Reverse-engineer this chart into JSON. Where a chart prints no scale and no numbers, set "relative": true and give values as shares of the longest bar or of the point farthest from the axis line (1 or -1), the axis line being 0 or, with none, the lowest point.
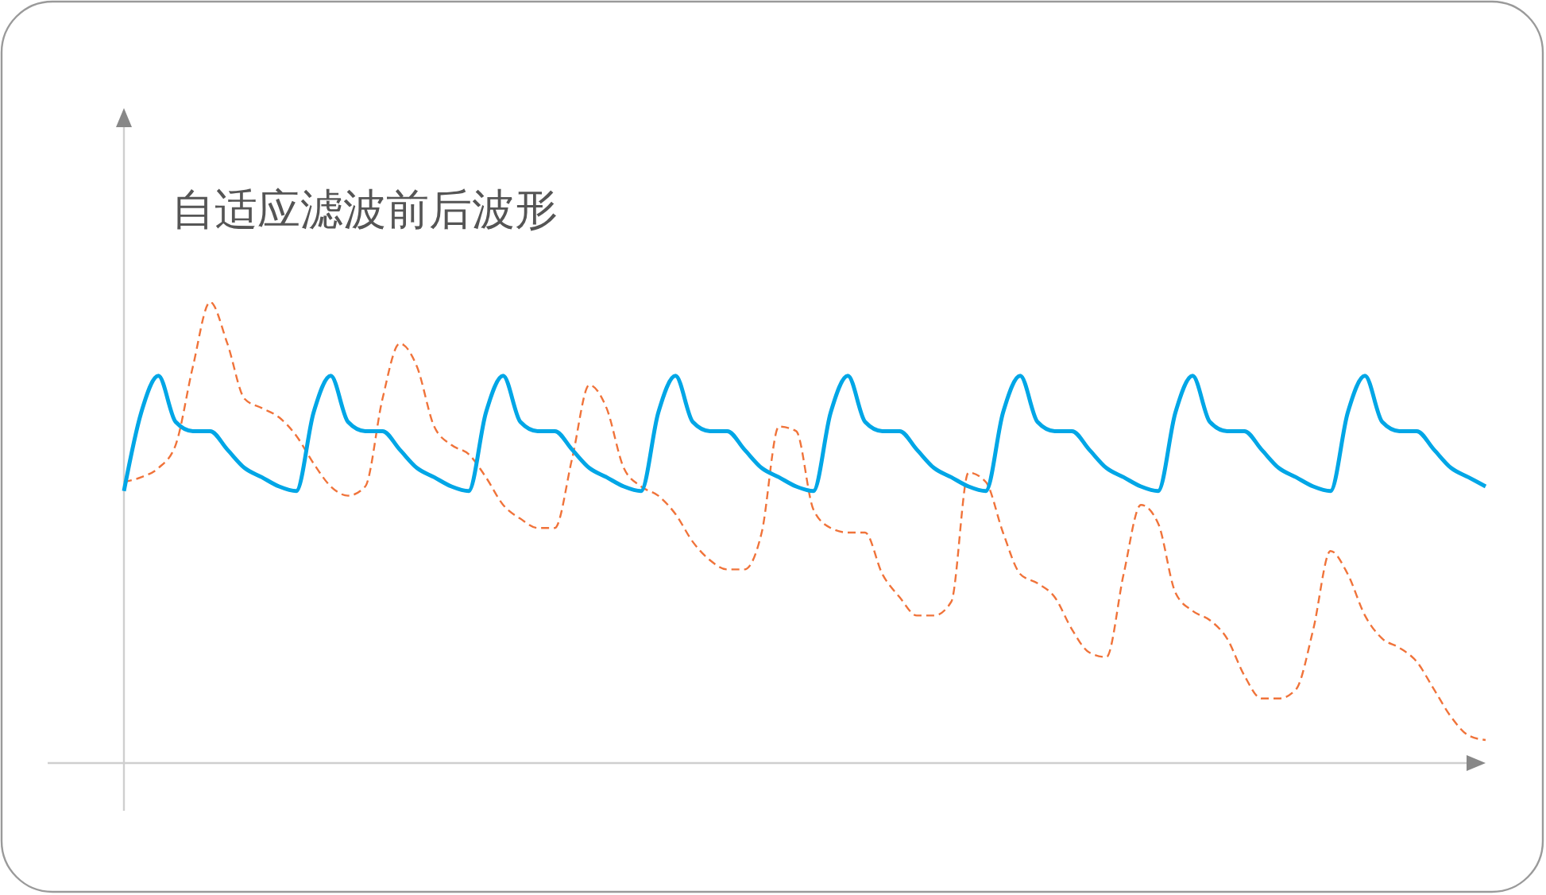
{
  "chart_data": {
    "type": "line",
    "title": "自适应滤波前后波形",
    "relative": true,
    "legend": false,
    "grid": false,
    "marker": "none",
    "categories": [
      null,
      null,
      null,
      null,
      null,
      null,
      null,
      null,
      null,
      null,
      null,
      null,
      null,
      null,
      null,
      null,
      null,
      null,
      null,
      null,
      null,
      null,
      null,
      null,
      null,
      null,
      null,
      null,
      null,
      null,
      null,
      null,
      null,
      null,
      null,
      null,
      null,
      null,
      null,
      null,
      null,
      null,
      null,
      null,
      null,
      null,
      null,
      null,
      null,
      null,
      null,
      null,
      null,
      null,
      null,
      null,
      null,
      null,
      null,
      null,
      null,
      null,
      null,
      null,
      null,
      null,
      null,
      null,
      null,
      null,
      null,
      null,
      null,
      null,
      null,
      null,
      null,
      null,
      null,
      null
    ],
    "series": [
      {
        "color": "#f0733a",
        "line_style": "dashed",
        "values": [
          0.61,
          0.62,
          0.64,
          0.69,
          0.86,
          1,
          0.91,
          0.79,
          0.77,
          0.75,
          0.71,
          0.65,
          0.6,
          0.58,
          0.6,
          0.79,
          0.91,
          0.86,
          0.73,
          0.69,
          0.67,
          0.62,
          0.56,
          0.53,
          0.51,
          0.51,
          0.66,
          0.82,
          0.77,
          0.64,
          0.6,
          0.58,
          0.54,
          0.48,
          0.44,
          0.42,
          0.42,
          0.5,
          0.73,
          0.72,
          0.55,
          0.51,
          0.5,
          0.5,
          0.41,
          0.36,
          0.32,
          0.32,
          0.35,
          0.63,
          0.61,
          0.5,
          0.41,
          0.39,
          0.36,
          0.29,
          0.24,
          0.23,
          0.41,
          0.56,
          0.52,
          0.37,
          0.33,
          0.31,
          0.27,
          0.19,
          0.14,
          0.14,
          0.16,
          0.29,
          0.46,
          0.41,
          0.32,
          0.27,
          0.25,
          0.22,
          0.16,
          0.1,
          0.06,
          0.05
        ]
      },
      {
        "color": "#00a6e6",
        "line_style": "solid",
        "values": [
          0.59,
          0.76,
          0.84,
          0.74,
          0.72,
          0.72,
          0.68,
          0.64,
          0.62,
          0.6,
          0.59,
          0.76,
          0.84,
          0.74,
          0.72,
          0.72,
          0.68,
          0.64,
          0.62,
          0.6,
          0.59,
          0.76,
          0.84,
          0.74,
          0.72,
          0.72,
          0.68,
          0.64,
          0.62,
          0.6,
          0.59,
          0.76,
          0.84,
          0.74,
          0.72,
          0.72,
          0.68,
          0.64,
          0.62,
          0.6,
          0.59,
          0.76,
          0.84,
          0.74,
          0.72,
          0.72,
          0.68,
          0.64,
          0.62,
          0.6,
          0.59,
          0.76,
          0.84,
          0.74,
          0.72,
          0.72,
          0.68,
          0.64,
          0.62,
          0.6,
          0.59,
          0.76,
          0.84,
          0.74,
          0.72,
          0.72,
          0.68,
          0.64,
          0.62,
          0.6,
          0.59,
          0.76,
          0.84,
          0.74,
          0.72,
          0.72,
          0.68,
          0.64,
          0.62,
          0.6
        ]
      }
    ]
  }
}
